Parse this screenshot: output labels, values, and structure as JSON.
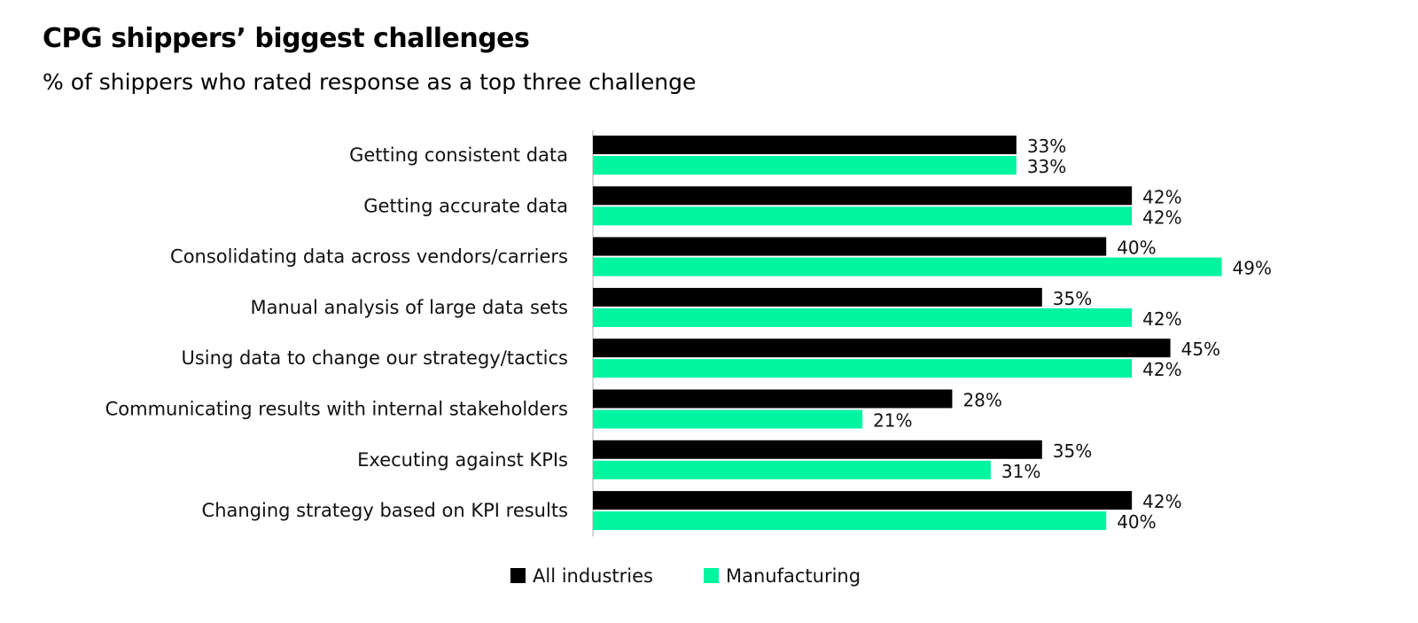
{
  "chart_data": {
    "type": "bar",
    "orientation": "horizontal",
    "title": "CPG shippers’ biggest challenges",
    "subtitle": "% of shippers who rated response as a top three challenge",
    "xlabel": "",
    "ylabel": "",
    "xlim": [
      0,
      50
    ],
    "grid": false,
    "legend_position": "bottom",
    "categories": [
      "Getting consistent data",
      "Getting accurate data",
      "Consolidating data across vendors/carriers",
      "Manual analysis of large data sets",
      "Using data to change our strategy/tactics",
      "Communicating results with internal stakeholders",
      "Executing against KPIs",
      "Changing strategy based on KPI results"
    ],
    "series": [
      {
        "name": "All industries",
        "color": "#000000",
        "values": [
          33,
          42,
          40,
          35,
          45,
          28,
          35,
          42
        ],
        "labels": [
          "33%",
          "42%",
          "40%",
          "35%",
          "45%",
          "28%",
          "35%",
          "42%"
        ]
      },
      {
        "name": "Manufacturing",
        "color": "#00F5A0",
        "values": [
          33,
          42,
          49,
          42,
          42,
          21,
          31,
          40
        ],
        "labels": [
          "33%",
          "42%",
          "49%",
          "42%",
          "42%",
          "21%",
          "31%",
          "40%"
        ]
      }
    ]
  }
}
